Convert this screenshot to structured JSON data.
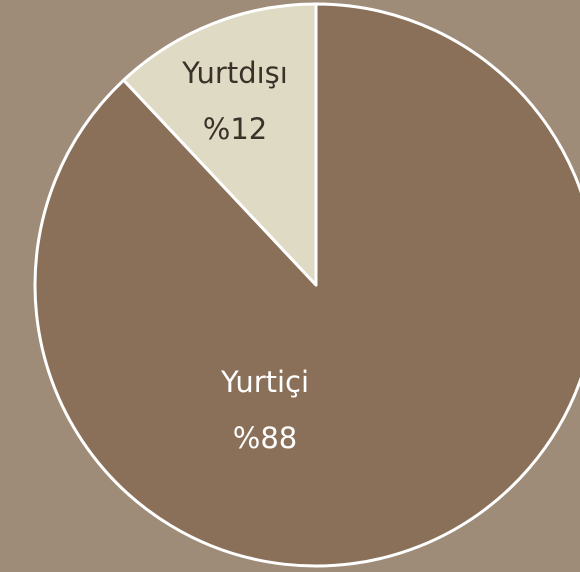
{
  "chart_data": {
    "type": "pie",
    "categories": [
      "Yurtiçi",
      "Yurtdışı"
    ],
    "values": [
      88,
      12
    ],
    "value_labels": [
      "%88",
      "%12"
    ],
    "colors": [
      "#8a7059",
      "#dedac4"
    ]
  }
}
